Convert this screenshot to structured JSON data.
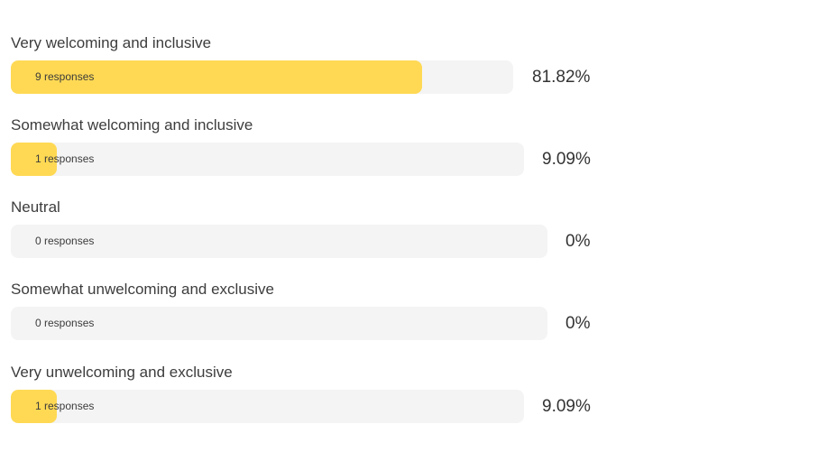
{
  "colors": {
    "fill": "#ffd954",
    "track": "#f4f4f4",
    "text": "#333333"
  },
  "chart_data": {
    "type": "bar",
    "orientation": "horizontal",
    "categories": [
      "Very welcoming and inclusive",
      "Somewhat welcoming and inclusive",
      "Neutral",
      "Somewhat unwelcoming and exclusive",
      "Very unwelcoming and exclusive"
    ],
    "values": [
      81.82,
      9.09,
      0,
      0,
      9.09
    ],
    "counts": [
      9,
      1,
      0,
      0,
      1
    ],
    "count_labels": [
      "9 responses",
      "1 responses",
      "0 responses",
      "0 responses",
      "1 responses"
    ],
    "percent_labels": [
      "81.82%",
      "9.09%",
      "0%",
      "0%",
      "9.09%"
    ],
    "xlim": [
      0,
      100
    ]
  }
}
